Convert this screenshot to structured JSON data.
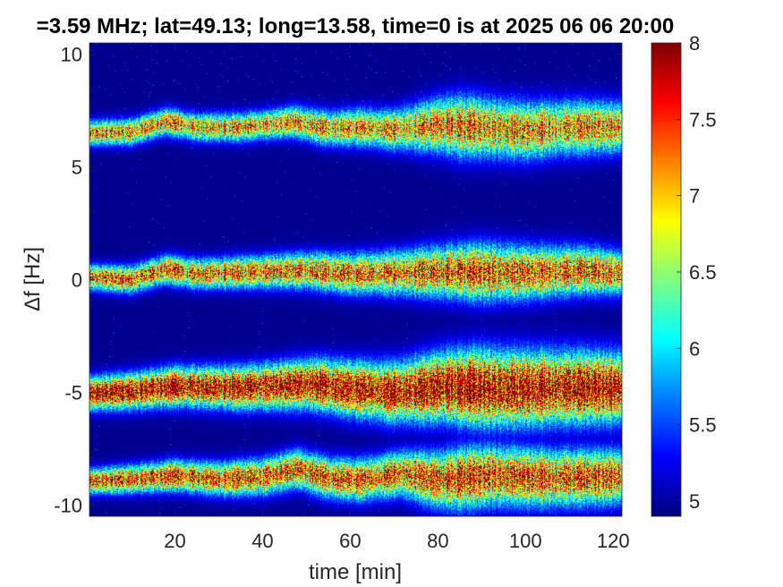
{
  "chart_data": {
    "type": "heatmap",
    "title": "=3.59 MHz;  lat=49.13; long=13.58, time=0 is at 2025 06 06 20:00",
    "xlabel": "time [min]",
    "ylabel": "Δf [Hz]",
    "xlim": [
      0.5,
      122
    ],
    "ylim": [
      -10.5,
      10.5
    ],
    "xticks": [
      20,
      40,
      60,
      80,
      100,
      120
    ],
    "yticks": [
      -10,
      -5,
      0,
      5,
      10
    ],
    "xtick_labels": [
      "20",
      "40",
      "60",
      "80",
      "100",
      "120"
    ],
    "ytick_labels": [
      "-10",
      "-5",
      "0",
      "5",
      "10"
    ],
    "colorbar": {
      "colormap": "jet",
      "range": [
        4.9,
        8
      ],
      "ticks": [
        5,
        5.5,
        6,
        6.5,
        7,
        7.5,
        8
      ],
      "tick_labels": [
        "5",
        "5.5",
        "6",
        "6.5",
        "7",
        "7.5",
        "8"
      ]
    },
    "background_value": 4.95,
    "bands": [
      {
        "center_hz": [
          [
            1,
            6.5
          ],
          [
            10,
            6.55
          ],
          [
            18,
            7.0
          ],
          [
            25,
            6.75
          ],
          [
            35,
            6.75
          ],
          [
            47,
            7.0
          ],
          [
            55,
            6.7
          ],
          [
            62,
            6.75
          ],
          [
            70,
            6.65
          ],
          [
            80,
            6.85
          ],
          [
            90,
            6.75
          ],
          [
            100,
            6.6
          ],
          [
            110,
            6.75
          ],
          [
            122,
            6.75
          ]
        ],
        "peak_value": 7.2,
        "width_hz": [
          [
            1,
            0.35
          ],
          [
            40,
            0.4
          ],
          [
            70,
            0.55
          ],
          [
            85,
            0.85
          ],
          [
            122,
            0.7
          ]
        ]
      },
      {
        "center_hz": [
          [
            1,
            0.1
          ],
          [
            10,
            0.0
          ],
          [
            18,
            0.45
          ],
          [
            25,
            0.25
          ],
          [
            40,
            0.35
          ],
          [
            50,
            0.4
          ],
          [
            60,
            0.25
          ],
          [
            70,
            0.3
          ],
          [
            85,
            0.35
          ],
          [
            100,
            0.3
          ],
          [
            113,
            0.4
          ],
          [
            122,
            0.3
          ]
        ],
        "peak_value": 7.4,
        "width_hz": [
          [
            1,
            0.35
          ],
          [
            40,
            0.45
          ],
          [
            70,
            0.6
          ],
          [
            90,
            0.8
          ],
          [
            122,
            0.6
          ]
        ]
      },
      {
        "center_hz": [
          [
            1,
            -5.05
          ],
          [
            10,
            -4.95
          ],
          [
            20,
            -4.75
          ],
          [
            35,
            -4.8
          ],
          [
            45,
            -4.7
          ],
          [
            52,
            -4.65
          ],
          [
            60,
            -4.85
          ],
          [
            70,
            -5.0
          ],
          [
            82,
            -4.75
          ],
          [
            95,
            -4.85
          ],
          [
            110,
            -4.8
          ],
          [
            122,
            -4.8
          ]
        ],
        "peak_value": 8.0,
        "width_hz": [
          [
            1,
            0.45
          ],
          [
            40,
            0.6
          ],
          [
            70,
            0.8
          ],
          [
            90,
            1.05
          ],
          [
            122,
            0.95
          ]
        ]
      },
      {
        "center_hz": [
          [
            1,
            -8.95
          ],
          [
            10,
            -8.85
          ],
          [
            20,
            -8.7
          ],
          [
            30,
            -8.85
          ],
          [
            40,
            -8.75
          ],
          [
            48,
            -8.4
          ],
          [
            55,
            -8.8
          ],
          [
            62,
            -8.9
          ],
          [
            72,
            -8.6
          ],
          [
            80,
            -8.9
          ],
          [
            92,
            -8.7
          ],
          [
            105,
            -8.8
          ],
          [
            122,
            -8.75
          ]
        ],
        "peak_value": 7.5,
        "width_hz": [
          [
            1,
            0.35
          ],
          [
            40,
            0.5
          ],
          [
            70,
            0.6
          ],
          [
            85,
            0.85
          ],
          [
            122,
            0.75
          ]
        ]
      }
    ]
  }
}
